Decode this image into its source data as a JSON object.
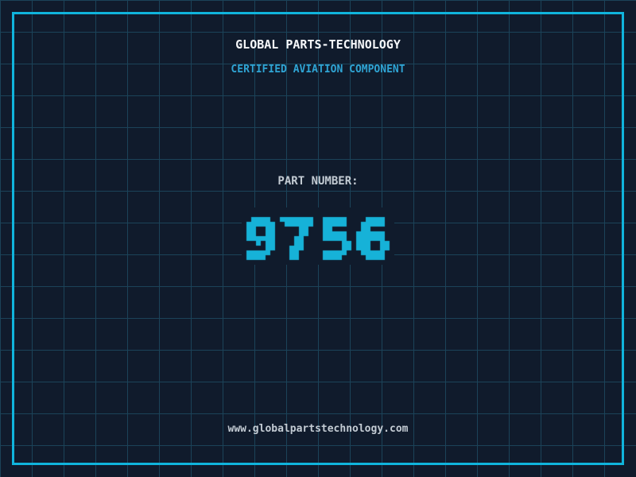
{
  "header": {
    "title": "GLOBAL PARTS-TECHNOLOGY",
    "subtitle": "CERTIFIED AVIATION COMPONENT"
  },
  "part": {
    "label": "PART NUMBER:",
    "number": "9756"
  },
  "footer": {
    "url": "www.globalpartstechnology.com"
  },
  "colors": {
    "background": "#101B2C",
    "grid_line": "#1B4359",
    "frame": "#10B4DC",
    "digits": "#16B2D8",
    "subtitle_blue": "#2FA4D4",
    "title_white": "#F5F7FA",
    "label_gray": "#C3CBD3"
  }
}
